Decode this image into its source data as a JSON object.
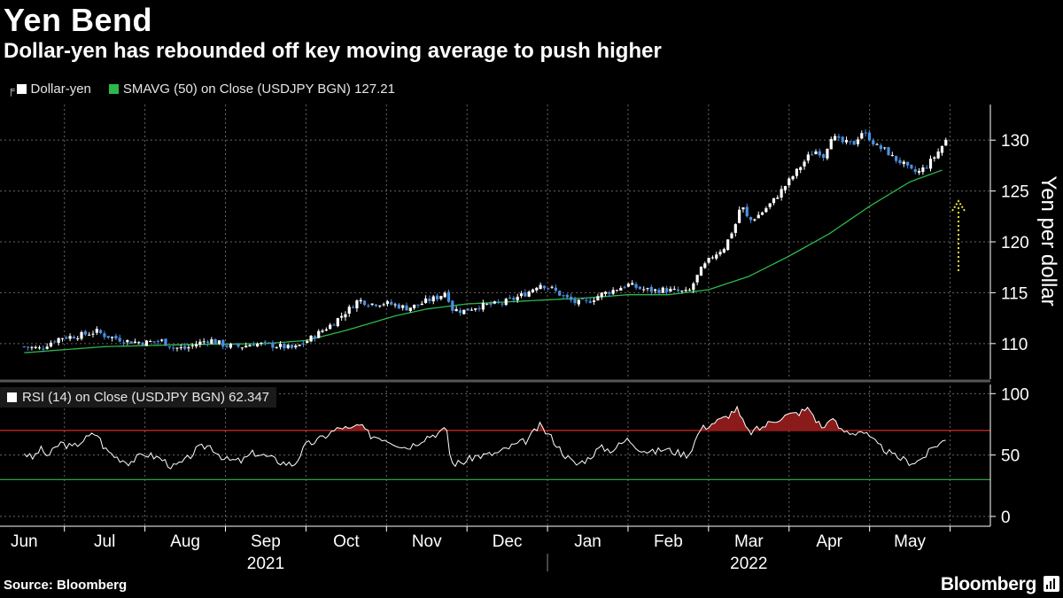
{
  "header": {
    "title": "Yen Bend",
    "subtitle": "Dollar-yen has rebounded off key moving average to push higher"
  },
  "legend": {
    "series1": "Dollar-yen",
    "series2_prefix": "SMAVG (50)  on Close (USDJPY BGN)",
    "series2_value": "127.21",
    "rsi_prefix": "RSI (14)  on Close (USDJPY BGN)",
    "rsi_value": "62.347"
  },
  "colors": {
    "background": "#000000",
    "candle_up": "#ffffff",
    "candle_down": "#4a90e2",
    "sma": "#2db84a",
    "rsi_line": "#ffffff",
    "overbought": "#d12a2a",
    "overbought_fill": "#8b1a1a",
    "oversold": "#2db84a",
    "arrow": "#f5e23a"
  },
  "chart_data": [
    {
      "type": "candlestick",
      "title": "Dollar-yen",
      "ylabel": "Yen per dollar",
      "ylim": [
        106.5,
        133.5
      ],
      "yticks": [
        110,
        115,
        120,
        125,
        130
      ],
      "months": [
        "Jun",
        "Jul",
        "Aug",
        "Sep",
        "Oct",
        "Nov",
        "Dec",
        "Jan",
        "Feb",
        "Mar",
        "Apr",
        "May"
      ],
      "years": [
        "2021",
        "2022"
      ],
      "close_path": [
        [
          0,
          109.7
        ],
        [
          0.1,
          109.6
        ],
        [
          0.2,
          109.5
        ],
        [
          0.3,
          110.0
        ],
        [
          0.45,
          110.6
        ],
        [
          0.6,
          110.7
        ],
        [
          0.75,
          110.9
        ],
        [
          0.9,
          111.2
        ],
        [
          1.0,
          110.8
        ],
        [
          1.15,
          110.5
        ],
        [
          1.3,
          110.2
        ],
        [
          1.5,
          110.1
        ],
        [
          1.7,
          110.3
        ],
        [
          1.85,
          109.6
        ],
        [
          2.0,
          109.5
        ],
        [
          2.15,
          110.0
        ],
        [
          2.3,
          110.4
        ],
        [
          2.5,
          109.8
        ],
        [
          2.7,
          109.7
        ],
        [
          2.85,
          110.0
        ],
        [
          3.0,
          109.9
        ],
        [
          3.2,
          109.7
        ],
        [
          3.35,
          109.5
        ],
        [
          3.5,
          110.2
        ],
        [
          3.65,
          111.0
        ],
        [
          3.8,
          111.8
        ],
        [
          3.95,
          112.8
        ],
        [
          4.05,
          113.5
        ],
        [
          4.15,
          114.3
        ],
        [
          4.3,
          113.9
        ],
        [
          4.45,
          114.0
        ],
        [
          4.6,
          113.8
        ],
        [
          4.75,
          113.5
        ],
        [
          4.9,
          113.8
        ],
        [
          5.0,
          114.2
        ],
        [
          5.15,
          114.6
        ],
        [
          5.25,
          115.2
        ],
        [
          5.3,
          113.4
        ],
        [
          5.45,
          113.2
        ],
        [
          5.6,
          113.6
        ],
        [
          5.75,
          113.8
        ],
        [
          5.9,
          113.9
        ],
        [
          6.05,
          114.3
        ],
        [
          6.25,
          115.0
        ],
        [
          6.4,
          115.9
        ],
        [
          6.55,
          115.4
        ],
        [
          6.7,
          114.6
        ],
        [
          6.85,
          114.0
        ],
        [
          7.0,
          114.1
        ],
        [
          7.15,
          114.8
        ],
        [
          7.3,
          115.2
        ],
        [
          7.5,
          115.8
        ],
        [
          7.65,
          115.4
        ],
        [
          7.8,
          115.2
        ],
        [
          7.95,
          115.3
        ],
        [
          8.05,
          115.2
        ],
        [
          8.25,
          115.0
        ],
        [
          8.4,
          117.2
        ],
        [
          8.55,
          118.6
        ],
        [
          8.7,
          119.5
        ],
        [
          8.85,
          122.0
        ],
        [
          8.9,
          123.8
        ],
        [
          9.0,
          122.0
        ],
        [
          9.15,
          122.8
        ],
        [
          9.3,
          124.0
        ],
        [
          9.45,
          125.5
        ],
        [
          9.6,
          127.0
        ],
        [
          9.75,
          128.5
        ],
        [
          9.85,
          129.0
        ],
        [
          9.95,
          128.3
        ],
        [
          10.0,
          130.5
        ],
        [
          10.15,
          129.8
        ],
        [
          10.3,
          129.6
        ],
        [
          10.4,
          130.8
        ],
        [
          10.5,
          130.2
        ],
        [
          10.6,
          129.3
        ],
        [
          10.7,
          129.0
        ],
        [
          10.8,
          128.2
        ],
        [
          10.9,
          127.8
        ],
        [
          11.0,
          127.0
        ],
        [
          11.1,
          126.8
        ],
        [
          11.2,
          127.4
        ],
        [
          11.32,
          128.5
        ],
        [
          11.45,
          130.0
        ]
      ],
      "sma_path": [
        [
          0,
          109.1
        ],
        [
          1,
          109.7
        ],
        [
          2,
          109.9
        ],
        [
          3,
          110.0
        ],
        [
          3.5,
          110.3
        ],
        [
          4,
          111.3
        ],
        [
          4.6,
          112.7
        ],
        [
          5,
          113.4
        ],
        [
          5.5,
          113.9
        ],
        [
          6,
          114.1
        ],
        [
          6.5,
          114.3
        ],
        [
          7,
          114.5
        ],
        [
          7.5,
          114.8
        ],
        [
          8,
          114.8
        ],
        [
          8.5,
          115.3
        ],
        [
          9,
          116.6
        ],
        [
          9.5,
          118.6
        ],
        [
          10,
          120.8
        ],
        [
          10.5,
          123.5
        ],
        [
          11,
          125.9
        ],
        [
          11.45,
          127.2
        ]
      ]
    },
    {
      "type": "line",
      "title": "RSI (14)",
      "ylim": [
        -8,
        106
      ],
      "yticks": [
        0,
        50,
        100
      ],
      "overbought": 70,
      "oversold": 30,
      "values": [
        [
          0,
          52
        ],
        [
          0.1,
          47
        ],
        [
          0.2,
          55
        ],
        [
          0.3,
          49
        ],
        [
          0.45,
          60
        ],
        [
          0.6,
          56
        ],
        [
          0.75,
          63
        ],
        [
          0.9,
          68
        ],
        [
          1.0,
          55
        ],
        [
          1.15,
          48
        ],
        [
          1.3,
          44
        ],
        [
          1.5,
          51
        ],
        [
          1.7,
          47
        ],
        [
          1.85,
          40
        ],
        [
          2.0,
          45
        ],
        [
          2.15,
          55
        ],
        [
          2.3,
          58
        ],
        [
          2.5,
          46
        ],
        [
          2.7,
          45
        ],
        [
          2.85,
          52
        ],
        [
          3.0,
          49
        ],
        [
          3.2,
          44
        ],
        [
          3.35,
          42
        ],
        [
          3.5,
          58
        ],
        [
          3.65,
          62
        ],
        [
          3.8,
          68
        ],
        [
          3.95,
          73
        ],
        [
          4.05,
          70
        ],
        [
          4.15,
          75
        ],
        [
          4.3,
          66
        ],
        [
          4.45,
          64
        ],
        [
          4.6,
          60
        ],
        [
          4.75,
          56
        ],
        [
          4.9,
          61
        ],
        [
          5.0,
          65
        ],
        [
          5.15,
          68
        ],
        [
          5.25,
          71
        ],
        [
          5.3,
          43
        ],
        [
          5.45,
          44
        ],
        [
          5.6,
          49
        ],
        [
          5.75,
          50
        ],
        [
          5.9,
          52
        ],
        [
          6.05,
          57
        ],
        [
          6.25,
          62
        ],
        [
          6.4,
          74
        ],
        [
          6.55,
          64
        ],
        [
          6.7,
          51
        ],
        [
          6.85,
          42
        ],
        [
          7.0,
          47
        ],
        [
          7.15,
          56
        ],
        [
          7.3,
          54
        ],
        [
          7.5,
          63
        ],
        [
          7.65,
          55
        ],
        [
          7.8,
          52
        ],
        [
          7.95,
          55
        ],
        [
          8.05,
          53
        ],
        [
          8.25,
          50
        ],
        [
          8.4,
          71
        ],
        [
          8.55,
          76
        ],
        [
          8.7,
          80
        ],
        [
          8.85,
          88
        ],
        [
          8.9,
          80
        ],
        [
          9.0,
          68
        ],
        [
          9.15,
          72
        ],
        [
          9.3,
          78
        ],
        [
          9.45,
          82
        ],
        [
          9.6,
          84
        ],
        [
          9.75,
          88
        ],
        [
          9.85,
          77
        ],
        [
          9.95,
          71
        ],
        [
          10.0,
          82
        ],
        [
          10.15,
          70
        ],
        [
          10.3,
          68
        ],
        [
          10.4,
          70
        ],
        [
          10.5,
          64
        ],
        [
          10.6,
          58
        ],
        [
          10.7,
          54
        ],
        [
          10.8,
          49
        ],
        [
          10.9,
          47
        ],
        [
          11.0,
          44
        ],
        [
          11.1,
          45
        ],
        [
          11.2,
          50
        ],
        [
          11.32,
          58
        ],
        [
          11.45,
          62.3
        ]
      ]
    }
  ],
  "footer": {
    "source": "Source: Bloomberg",
    "brand": "Bloomberg"
  }
}
